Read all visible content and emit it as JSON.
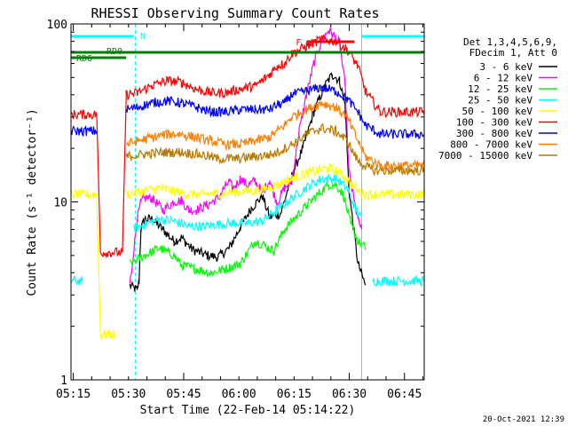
{
  "chart_data": {
    "type": "line",
    "title": "RHESSI Observing Summary Count Rates",
    "xlabel": "Start Time (22-Feb-14 05:14:22)",
    "ylabel": "Count Rate (s⁻¹ detector⁻¹)",
    "x_unit": "minutes after 05:14:22",
    "xlim": [
      0,
      96
    ],
    "ylim": [
      1,
      100
    ],
    "y_scale": "log",
    "x_tick_labels": [
      "05:15",
      "05:30",
      "05:45",
      "06:00",
      "06:15",
      "06:30",
      "06:45"
    ],
    "x_tick_minutes": [
      0.63,
      15.63,
      30.63,
      45.63,
      60.63,
      75.63,
      90.63
    ],
    "y_tick_labels": [
      "1",
      "10",
      "100"
    ],
    "y_tick_values": [
      1,
      10,
      100
    ],
    "legend_header": [
      "Det 1,3,4,5,6,9,",
      "FDecim 1, Att 0"
    ],
    "legend_position": "right",
    "timestamp": "20-Oct-2021 12:39",
    "series": [
      {
        "name": "3 - 6 keV",
        "color": "#000000",
        "points": [
          [
            0,
            null
          ],
          [
            15,
            null
          ],
          [
            16,
            3.4
          ],
          [
            18,
            3.2
          ],
          [
            18.5,
            3.6
          ],
          [
            19,
            7.0
          ],
          [
            20,
            8.0
          ],
          [
            22,
            8.0
          ],
          [
            25,
            7.0
          ],
          [
            28,
            6.0
          ],
          [
            30,
            6.3
          ],
          [
            33,
            5.4
          ],
          [
            37,
            5.0
          ],
          [
            40,
            4.9
          ],
          [
            43,
            5.5
          ],
          [
            46,
            7.2
          ],
          [
            49,
            9.2
          ],
          [
            52,
            10.8
          ],
          [
            54,
            8.2
          ],
          [
            57,
            8.6
          ],
          [
            60,
            14
          ],
          [
            63,
            20
          ],
          [
            66,
            32
          ],
          [
            69,
            45
          ],
          [
            71,
            52
          ],
          [
            73,
            48
          ],
          [
            74.5,
            35
          ],
          [
            75.5,
            12
          ],
          [
            76.5,
            8
          ],
          [
            78,
            4.5
          ],
          [
            80,
            3.4
          ],
          [
            81,
            null
          ]
        ]
      },
      {
        "name": "6 - 12 keV",
        "color": "#ff00ff",
        "points": [
          [
            0,
            null
          ],
          [
            15,
            null
          ],
          [
            16,
            3.4
          ],
          [
            18,
            8.0
          ],
          [
            19,
            10.0
          ],
          [
            20,
            10.5
          ],
          [
            22,
            10.5
          ],
          [
            25,
            9.0
          ],
          [
            28,
            10.0
          ],
          [
            30,
            10.2
          ],
          [
            32,
            9.0
          ],
          [
            34,
            9.0
          ],
          [
            37,
            9.6
          ],
          [
            40,
            10.5
          ],
          [
            42,
            12.3
          ],
          [
            43,
            13.0
          ],
          [
            44,
            11.8
          ],
          [
            46,
            13.5
          ],
          [
            48,
            12.3
          ],
          [
            50,
            13.2
          ],
          [
            52,
            11.3
          ],
          [
            54,
            13.2
          ],
          [
            56,
            9.8
          ],
          [
            58,
            12.0
          ],
          [
            60,
            13.0
          ],
          [
            62,
            25
          ],
          [
            64,
            40
          ],
          [
            66,
            60
          ],
          [
            68,
            80
          ],
          [
            70,
            92
          ],
          [
            71,
            88
          ],
          [
            73,
            78
          ],
          [
            74.5,
            45
          ],
          [
            75.5,
            15
          ],
          [
            77,
            10
          ],
          [
            78,
            8
          ],
          [
            79,
            7
          ],
          [
            80,
            null
          ]
        ]
      },
      {
        "name": "12 - 25 keV",
        "color": "#00ff00",
        "points": [
          [
            0,
            null
          ],
          [
            15,
            null
          ],
          [
            16,
            4.5
          ],
          [
            20,
            5.0
          ],
          [
            24,
            5.5
          ],
          [
            28,
            5.0
          ],
          [
            30,
            4.4
          ],
          [
            34,
            4.2
          ],
          [
            38,
            4.0
          ],
          [
            42,
            4.2
          ],
          [
            46,
            4.5
          ],
          [
            50,
            6.0
          ],
          [
            52,
            5.8
          ],
          [
            55,
            5.3
          ],
          [
            58,
            7.0
          ],
          [
            61,
            8.2
          ],
          [
            64,
            9.5
          ],
          [
            67,
            11.0
          ],
          [
            70,
            12.5
          ],
          [
            72,
            12.5
          ],
          [
            74,
            11.0
          ],
          [
            76,
            7.5
          ],
          [
            78,
            6.0
          ],
          [
            80,
            5.5
          ],
          [
            81,
            null
          ]
        ]
      },
      {
        "name": "25 - 50 keV",
        "color": "#00ffff",
        "points": [
          [
            0,
            3.6
          ],
          [
            3,
            3.6
          ],
          [
            4,
            null
          ],
          [
            16,
            null
          ],
          [
            17,
            7.0
          ],
          [
            20,
            7.5
          ],
          [
            24,
            8.0
          ],
          [
            28,
            7.8
          ],
          [
            32,
            7.3
          ],
          [
            36,
            7.3
          ],
          [
            40,
            7.5
          ],
          [
            44,
            7.6
          ],
          [
            48,
            7.6
          ],
          [
            52,
            7.8
          ],
          [
            56,
            9.0
          ],
          [
            60,
            10.5
          ],
          [
            64,
            12.0
          ],
          [
            68,
            13.5
          ],
          [
            72,
            13.5
          ],
          [
            75,
            12.0
          ],
          [
            77,
            9.5
          ],
          [
            79,
            8.0
          ],
          [
            80.5,
            null
          ],
          [
            82,
            3.6
          ],
          [
            96,
            3.6
          ]
        ]
      },
      {
        "name": "50 - 100 keV",
        "color": "#ffff00",
        "points": [
          [
            0,
            11.0
          ],
          [
            7,
            11.0
          ],
          [
            8,
            1.8
          ],
          [
            12,
            1.8
          ],
          [
            13,
            null
          ],
          [
            15,
            11.0
          ],
          [
            20,
            11.5
          ],
          [
            24,
            12.0
          ],
          [
            28,
            11.5
          ],
          [
            32,
            11.0
          ],
          [
            36,
            11.0
          ],
          [
            40,
            11.2
          ],
          [
            44,
            11.3
          ],
          [
            48,
            11.5
          ],
          [
            52,
            11.7
          ],
          [
            56,
            12.5
          ],
          [
            60,
            13.5
          ],
          [
            64,
            14.5
          ],
          [
            67,
            15.0
          ],
          [
            70,
            15.5
          ],
          [
            72,
            15.0
          ],
          [
            75,
            13.5
          ],
          [
            78,
            11.5
          ],
          [
            80,
            11.0
          ],
          [
            96,
            11.0
          ]
        ]
      },
      {
        "name": "100 - 300 keV",
        "color": "#ff0000",
        "points": [
          [
            0,
            31
          ],
          [
            7,
            31
          ],
          [
            8,
            5.2
          ],
          [
            14,
            5.2
          ],
          [
            15,
            40
          ],
          [
            18,
            41
          ],
          [
            22,
            45
          ],
          [
            26,
            48
          ],
          [
            30,
            47
          ],
          [
            34,
            43
          ],
          [
            38,
            41
          ],
          [
            42,
            41
          ],
          [
            46,
            43
          ],
          [
            50,
            45
          ],
          [
            52,
            48
          ],
          [
            54,
            52
          ],
          [
            56,
            58
          ],
          [
            58,
            60
          ],
          [
            60,
            68
          ],
          [
            64,
            75
          ],
          [
            68,
            82
          ],
          [
            72,
            80
          ],
          [
            75,
            72
          ],
          [
            78,
            58
          ],
          [
            80,
            42
          ],
          [
            84,
            32
          ],
          [
            96,
            32
          ]
        ]
      },
      {
        "name": "300 - 800 keV",
        "color": "#0000ff",
        "points": [
          [
            0,
            25
          ],
          [
            7,
            25
          ],
          [
            8,
            null
          ],
          [
            14,
            null
          ],
          [
            15,
            33
          ],
          [
            18,
            34
          ],
          [
            22,
            36
          ],
          [
            26,
            37
          ],
          [
            30,
            36
          ],
          [
            34,
            34
          ],
          [
            38,
            32
          ],
          [
            42,
            32
          ],
          [
            46,
            33
          ],
          [
            50,
            33
          ],
          [
            54,
            33
          ],
          [
            56,
            35
          ],
          [
            58,
            36
          ],
          [
            60,
            40
          ],
          [
            64,
            42
          ],
          [
            68,
            44
          ],
          [
            72,
            42
          ],
          [
            75,
            38
          ],
          [
            78,
            32
          ],
          [
            80,
            27
          ],
          [
            84,
            24
          ],
          [
            96,
            24
          ]
        ]
      },
      {
        "name": "800 - 7000 keV",
        "color": "#ff8000",
        "points": [
          [
            0,
            null
          ],
          [
            14,
            null
          ],
          [
            15,
            21
          ],
          [
            18,
            22
          ],
          [
            22,
            23
          ],
          [
            26,
            24
          ],
          [
            30,
            24
          ],
          [
            34,
            23
          ],
          [
            38,
            22
          ],
          [
            42,
            21
          ],
          [
            46,
            21
          ],
          [
            50,
            22
          ],
          [
            54,
            23
          ],
          [
            56,
            25
          ],
          [
            58,
            27
          ],
          [
            60,
            30
          ],
          [
            64,
            33
          ],
          [
            68,
            36
          ],
          [
            72,
            34
          ],
          [
            75,
            30
          ],
          [
            78,
            22
          ],
          [
            80,
            18
          ],
          [
            84,
            16
          ],
          [
            96,
            16
          ]
        ]
      },
      {
        "name": "7000 - 15000 keV",
        "color": "#b87a00",
        "points": [
          [
            0,
            null
          ],
          [
            14,
            null
          ],
          [
            15,
            18
          ],
          [
            20,
            18.5
          ],
          [
            25,
            19
          ],
          [
            30,
            19
          ],
          [
            35,
            18.5
          ],
          [
            40,
            17.5
          ],
          [
            45,
            17.5
          ],
          [
            50,
            18
          ],
          [
            55,
            18.5
          ],
          [
            60,
            21
          ],
          [
            64,
            24
          ],
          [
            68,
            26
          ],
          [
            72,
            25
          ],
          [
            75,
            22
          ],
          [
            78,
            17
          ],
          [
            82,
            15
          ],
          [
            96,
            15
          ]
        ]
      }
    ],
    "attenuator_bars": [
      {
        "label": "N",
        "color": "#00ffff",
        "row": "top",
        "start": 0,
        "end": 17
      },
      {
        "label": "",
        "color": "#00ffff",
        "row": "top",
        "start": 79,
        "end": 96
      },
      {
        "label": "RD0",
        "color": "#008000",
        "row": "middle",
        "start": 0,
        "end": 96
      },
      {
        "label": "RD6",
        "color": "#008000",
        "row": "lower",
        "start": 0,
        "end": 15
      },
      {
        "label": "F",
        "color": "#ff0000",
        "row": "middle",
        "start": 64,
        "end": 77
      }
    ],
    "vertical_markers": [
      {
        "color": "#00ffff",
        "style": "solid",
        "x": 0
      },
      {
        "color": "#00ffff",
        "style": "dashed",
        "x": 17.5
      },
      {
        "color": "#00ffff",
        "style": "solid",
        "x": 79
      },
      {
        "color": "#00ffff",
        "style": "dashed",
        "x": 96
      }
    ]
  }
}
